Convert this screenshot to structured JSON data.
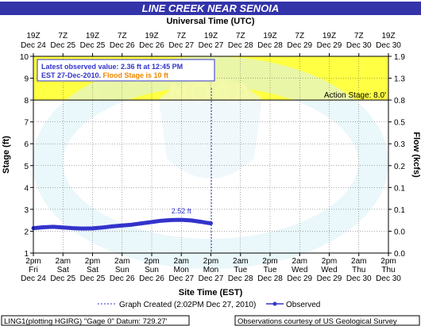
{
  "chart_data": {
    "type": "line",
    "title": "LINE CREEK NEAR SENOIA",
    "top_axis_title": "Universal Time (UTC)",
    "bottom_axis_title": "Site Time (EST)",
    "ylabel": "Stage (ft)",
    "y2label": "Flow (kcfs)",
    "ylim": [
      1,
      10
    ],
    "yticks": [
      1,
      2,
      3,
      4,
      5,
      6,
      7,
      8,
      9,
      10
    ],
    "y2_ticks": [
      {
        "stage": 10,
        "label": "1.9"
      },
      {
        "stage": 9,
        "label": "1.3"
      },
      {
        "stage": 8,
        "label": "0.8"
      },
      {
        "stage": 7,
        "label": "0.5"
      },
      {
        "stage": 6,
        "label": "0.3"
      },
      {
        "stage": 5,
        "label": "0.2"
      },
      {
        "stage": 4,
        "label": "0.1"
      },
      {
        "stage": 3,
        "label": "0.1"
      },
      {
        "stage": 2,
        "label": "0.0"
      },
      {
        "stage": 1,
        "label": "0.0"
      }
    ],
    "x_ticks_bottom": [
      [
        "2pm",
        "Fri",
        "Dec 24"
      ],
      [
        "2am",
        "Sat",
        "Dec 25"
      ],
      [
        "2pm",
        "Sat",
        "Dec 25"
      ],
      [
        "2am",
        "Sun",
        "Dec 26"
      ],
      [
        "2pm",
        "Sun",
        "Dec 26"
      ],
      [
        "2am",
        "Mon",
        "Dec 27"
      ],
      [
        "2pm",
        "Mon",
        "Dec 27"
      ],
      [
        "2am",
        "Tue",
        "Dec 28"
      ],
      [
        "2pm",
        "Tue",
        "Dec 28"
      ],
      [
        "2am",
        "Wed",
        "Dec 29"
      ],
      [
        "2pm",
        "Wed",
        "Dec 29"
      ],
      [
        "2am",
        "Thu",
        "Dec 30"
      ],
      [
        "2pm",
        "Thu",
        "Dec 30"
      ]
    ],
    "x_ticks_top": [
      [
        "19Z",
        "Dec 24"
      ],
      [
        "7Z",
        "Dec 25"
      ],
      [
        "19Z",
        "Dec 25"
      ],
      [
        "7Z",
        "Dec 26"
      ],
      [
        "19Z",
        "Dec 26"
      ],
      [
        "7Z",
        "Dec 27"
      ],
      [
        "19Z",
        "Dec 27"
      ],
      [
        "7Z",
        "Dec 28"
      ],
      [
        "19Z",
        "Dec 28"
      ],
      [
        "7Z",
        "Dec 29"
      ],
      [
        "19Z",
        "Dec 29"
      ],
      [
        "7Z",
        "Dec 30"
      ],
      [
        "19Z",
        "Dec 30"
      ]
    ],
    "x_range_hours": [
      0,
      144
    ],
    "observed": {
      "name": "Observed",
      "color": "#3333cc",
      "x_hours": [
        0,
        4,
        8,
        12,
        16,
        20,
        24,
        28,
        32,
        36,
        40,
        44,
        48,
        52,
        56,
        60,
        64,
        68,
        70,
        72
      ],
      "stage_ft": [
        2.14,
        2.18,
        2.2,
        2.17,
        2.14,
        2.12,
        2.13,
        2.17,
        2.22,
        2.26,
        2.3,
        2.36,
        2.42,
        2.48,
        2.51,
        2.52,
        2.49,
        2.43,
        2.39,
        2.36
      ]
    },
    "peak_label": {
      "text": "2.52 ft",
      "x_hours": 60,
      "stage_ft": 2.52
    },
    "graph_created_x_hours": 72.2,
    "action_stage": {
      "value": 8.0,
      "label": "Action Stage: 8.0'"
    },
    "flood_stage_ft": 10,
    "band_color": "#ffff44",
    "watermark": "NOAA",
    "annotation": {
      "line1": "Latest observed value: 2.36 ft at 12:45 PM",
      "line2_prefix": "EST 27-Dec-2010.",
      "line2_flood": "Flood Stage is 10 ft"
    },
    "legend": {
      "graph_created": "Graph Created (2:02PM Dec 27, 2010)",
      "observed": "Observed"
    },
    "footer_left": "LING1(plotting HGIRG) \"Gage 0\" Datum: 729.27'",
    "footer_right": "Observations courtesy of US Geological Survey"
  }
}
